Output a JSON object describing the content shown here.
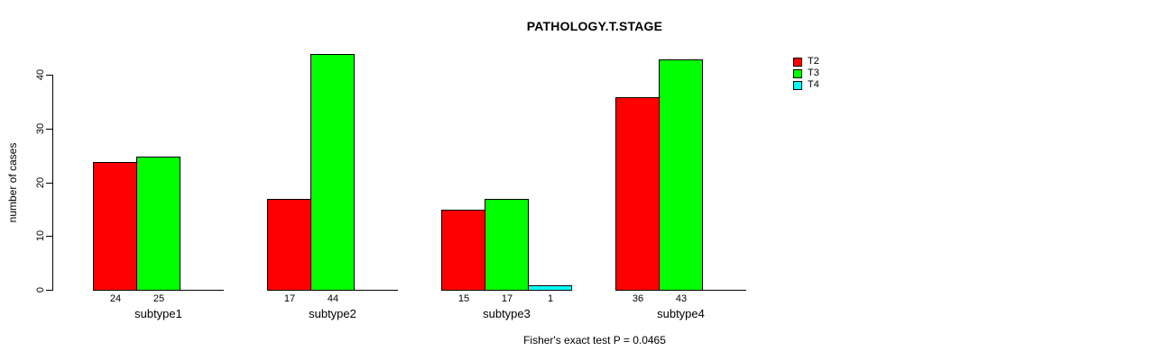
{
  "title": "PATHOLOGY.T.STAGE",
  "footer": "Fisher's exact test P = 0.0465",
  "colors": {
    "t2": "#FF0000",
    "t3": "#00FF00",
    "t4": "#00FFFF",
    "axis": "#000000",
    "background": "#FFFFFF"
  },
  "legend": {
    "position": "top-right",
    "entries": [
      {
        "label": "T2",
        "color": "#FF0000"
      },
      {
        "label": "T3",
        "color": "#00FF00"
      },
      {
        "label": "T4",
        "color": "#00FFFF"
      }
    ]
  },
  "chart_data": {
    "type": "bar",
    "title": "PATHOLOGY.T.STAGE",
    "xlabel": "",
    "ylabel": "number of cases",
    "categories": [
      "subtype1",
      "subtype2",
      "subtype3",
      "subtype4"
    ],
    "series": [
      {
        "name": "T2",
        "color": "#FF0000",
        "values": [
          24,
          17,
          15,
          36
        ]
      },
      {
        "name": "T3",
        "color": "#00FF00",
        "values": [
          25,
          44,
          17,
          43
        ]
      },
      {
        "name": "T4",
        "color": "#00FFFF",
        "values": [
          0,
          0,
          1,
          0
        ]
      }
    ],
    "value_labels": [
      [
        "24",
        "25",
        ""
      ],
      [
        "17",
        "44",
        ""
      ],
      [
        "15",
        "17",
        "1"
      ],
      [
        "36",
        "43",
        ""
      ]
    ],
    "yticks": [
      0,
      10,
      20,
      30,
      40
    ],
    "ylim": [
      0,
      44
    ],
    "grid": false,
    "legend_position": "top-right",
    "annotation": "Fisher's exact test P = 0.0465"
  }
}
